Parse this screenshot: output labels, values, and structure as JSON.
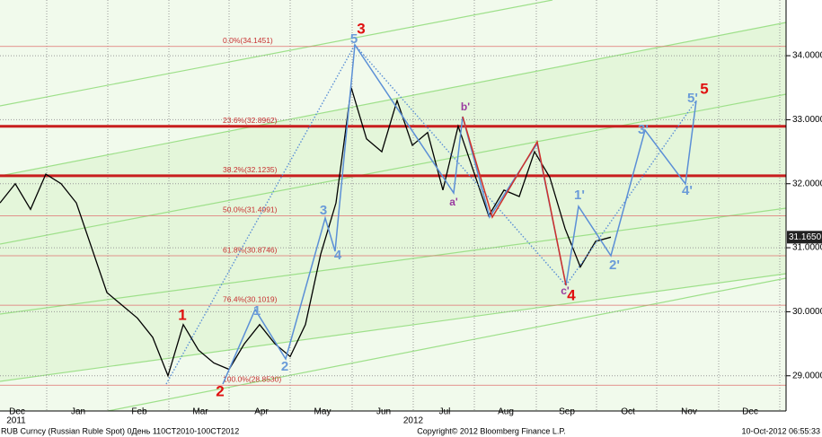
{
  "chart_data": {
    "type": "line",
    "categories": [
      null,
      "Dec",
      null,
      null,
      null,
      "Jan",
      null,
      null,
      null,
      "Feb",
      null,
      null,
      null,
      "Mar",
      null,
      null,
      null,
      "Apr",
      null,
      null,
      null,
      "May",
      null,
      null,
      null,
      "Jun",
      null,
      null,
      null,
      "Jul",
      null,
      null,
      null,
      "Aug",
      null,
      null,
      null,
      "Sep",
      null,
      null,
      null,
      "Oct",
      null,
      null,
      null,
      "Nov",
      null,
      null,
      null,
      "Dec",
      null
    ],
    "year_labels": [
      "2011",
      "2012"
    ],
    "series": [
      {
        "name": "RUB Curncy",
        "color": "#000000",
        "values": [
          31.7,
          32.0,
          31.6,
          32.15,
          32.0,
          31.7,
          31.0,
          30.3,
          30.1,
          29.9,
          29.6,
          29.0,
          29.8,
          29.4,
          29.2,
          29.1,
          29.5,
          29.8,
          29.5,
          29.3,
          29.8,
          30.9,
          31.7,
          33.5,
          32.7,
          32.5,
          33.3,
          32.6,
          32.8,
          31.9,
          32.9,
          32.2,
          31.5,
          31.9,
          31.8,
          32.5,
          32.1,
          31.3,
          30.7,
          31.1,
          31.165,
          null,
          null,
          null,
          null,
          null,
          null,
          null,
          null,
          null,
          null
        ]
      }
    ],
    "ylim": [
      28.45,
      34.87
    ],
    "yticks": [
      {
        "value": 29,
        "label": "29.0000"
      },
      {
        "value": 30,
        "label": "30.0000"
      },
      {
        "value": 31,
        "label": "31.0000"
      },
      {
        "value": 32,
        "label": "32.0000"
      },
      {
        "value": 33,
        "label": "33.0000"
      },
      {
        "value": 34,
        "label": "34.0000"
      }
    ],
    "last_price": {
      "value": 31.165,
      "label": "31.1650"
    },
    "fib_levels": [
      {
        "value": 34.1451,
        "label": "0.0%(34.1451)"
      },
      {
        "value": 32.8962,
        "label": "23.6%(32.8962)"
      },
      {
        "value": 32.1235,
        "label": "38.2%(32.1235)"
      },
      {
        "value": 31.4991,
        "label": "50.0%(31.4991)"
      },
      {
        "value": 30.8746,
        "label": "61.8%(30.8746)"
      },
      {
        "value": 30.1019,
        "label": "76.4%(30.1019)"
      },
      {
        "value": 28.853,
        "label": "100.0%(28.8530)"
      }
    ],
    "wave_labels": [
      "1",
      "2",
      "3",
      "4",
      "5",
      "1",
      "2",
      "3",
      "4",
      "5",
      "1'",
      "2'",
      "3'",
      "4'",
      "5'",
      "a'",
      "b'",
      "c'"
    ],
    "footer": {
      "left": "RUB Curncy (Russian Ruble Spot) 0День 110CT2010-100CT2012",
      "center": "Copyright© 2012 Bloomberg Finance L.P.",
      "right": "10-Oct-2012 06:55:33"
    }
  }
}
